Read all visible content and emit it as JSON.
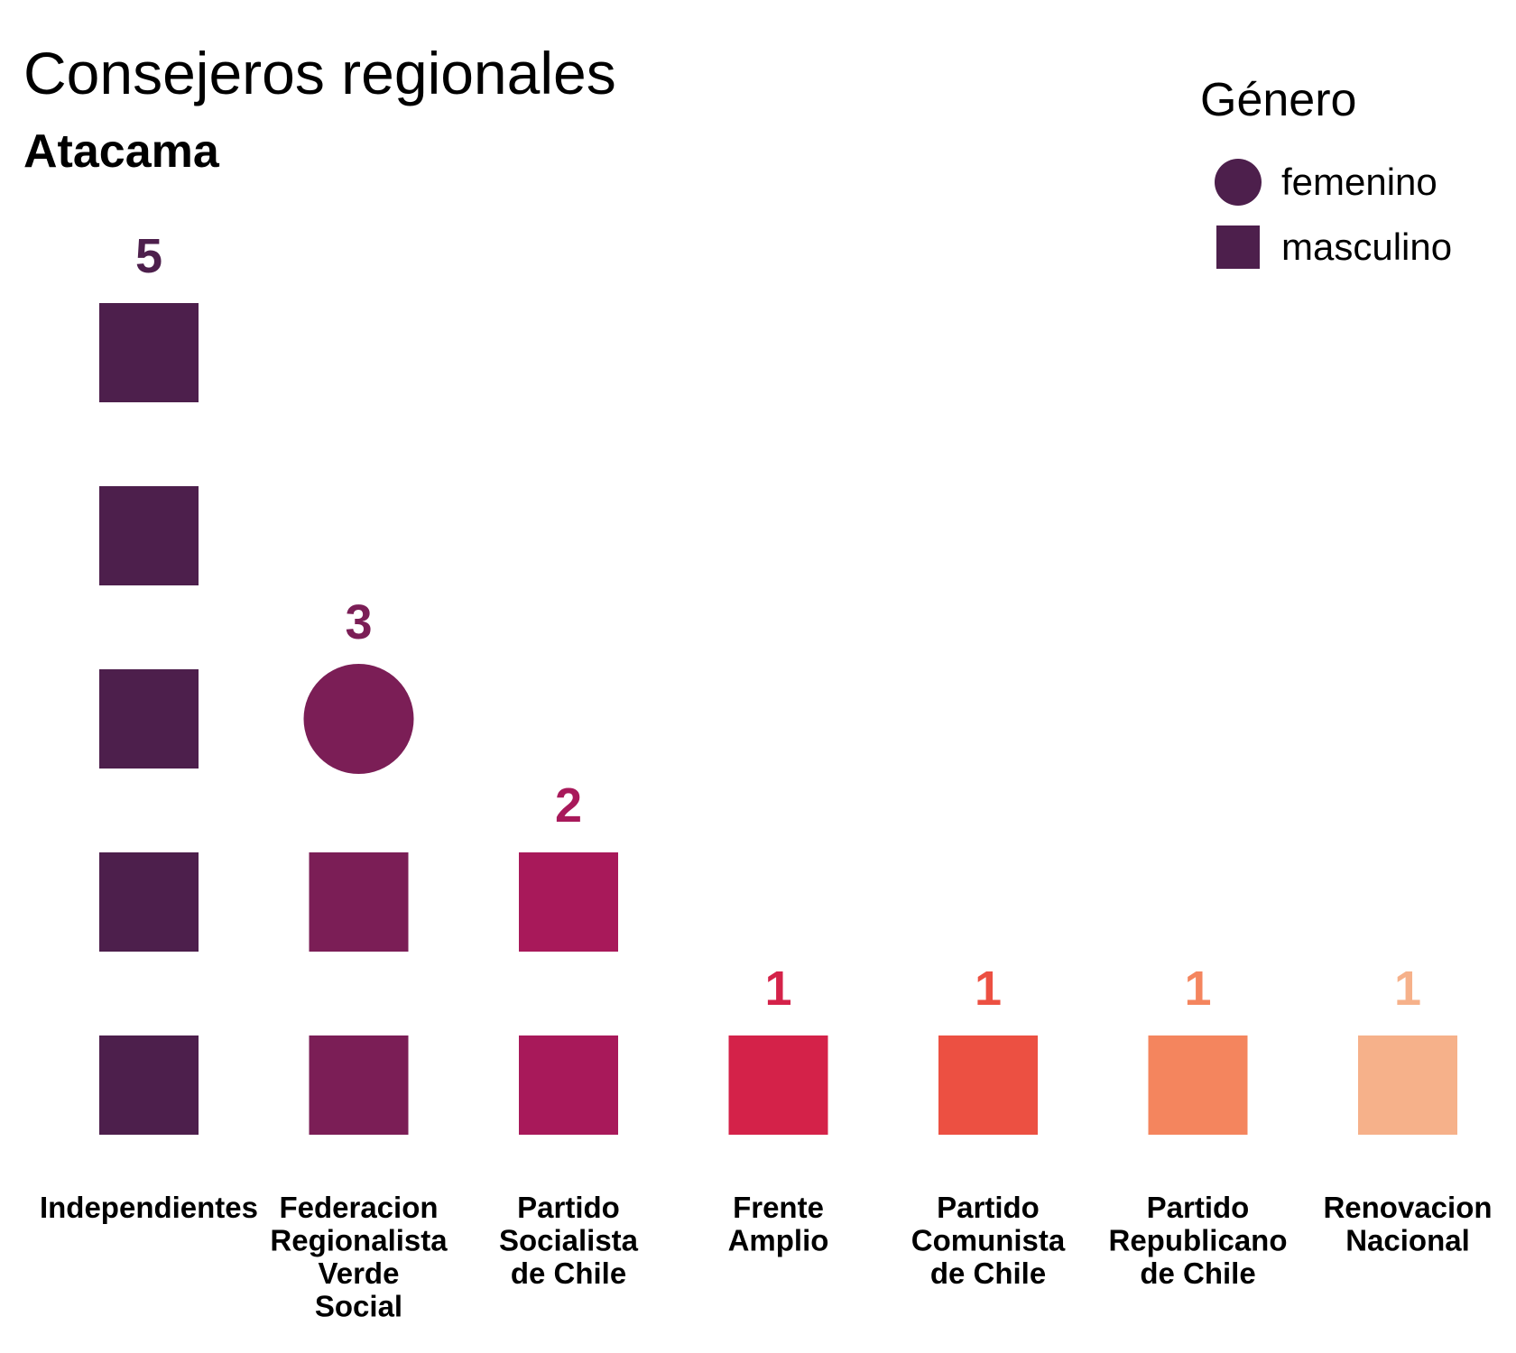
{
  "chart_data": {
    "type": "unit",
    "title": "Consejeros regionales",
    "subtitle": "Atacama",
    "legend": {
      "title": "Género",
      "placement": "top-right",
      "items": [
        {
          "label": "femenino",
          "shape": "circle",
          "color": "#4d1f4c"
        },
        {
          "label": "masculino",
          "shape": "square",
          "color": "#4d1f4c"
        }
      ]
    },
    "categories": [
      {
        "lines": [
          "Independientes"
        ],
        "count": "5",
        "color": "#4d1f4c",
        "units": [
          "masculino",
          "masculino",
          "masculino",
          "masculino",
          "masculino"
        ]
      },
      {
        "lines": [
          "Federacion",
          "Regionalista",
          "Verde",
          "Social"
        ],
        "count": "3",
        "color": "#7b1e56",
        "units": [
          "masculino",
          "masculino",
          "femenino"
        ]
      },
      {
        "lines": [
          "Partido",
          "Socialista",
          "de Chile"
        ],
        "count": "2",
        "color": "#a8195a",
        "units": [
          "masculino",
          "masculino"
        ]
      },
      {
        "lines": [
          "Frente",
          "Amplio"
        ],
        "count": "1",
        "color": "#d42249",
        "units": [
          "masculino"
        ]
      },
      {
        "lines": [
          "Partido",
          "Comunista",
          "de Chile"
        ],
        "count": "1",
        "color": "#ec5042",
        "units": [
          "masculino"
        ]
      },
      {
        "lines": [
          "Partido",
          "Republicano",
          "de Chile"
        ],
        "count": "1",
        "color": "#f4855e",
        "units": [
          "masculino"
        ]
      },
      {
        "lines": [
          "Renovacion",
          "Nacional"
        ],
        "count": "1",
        "color": "#f6b18a",
        "units": [
          "masculino"
        ]
      }
    ]
  }
}
